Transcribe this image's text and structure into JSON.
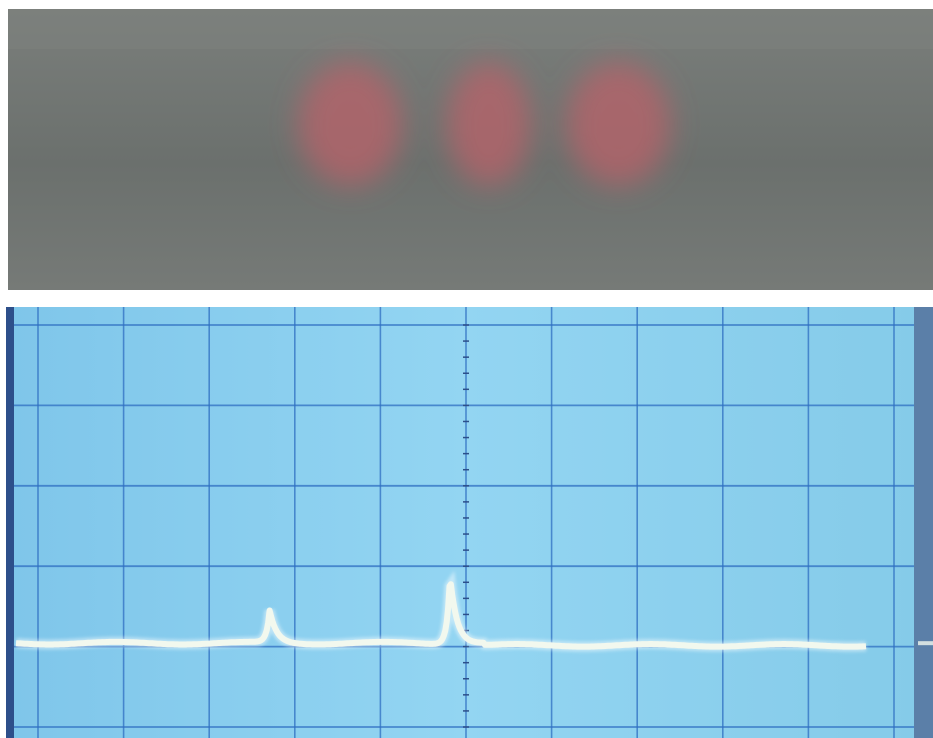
{
  "colors": {
    "photo_background": "#6f7370",
    "photo_glow": "#b9626a",
    "scope_screen": "#8ed2f0",
    "scope_grid": "#2f6fc2",
    "scope_frame": "#2d4f8a",
    "scope_trace": "#f2f8ee"
  },
  "oscilloscope": {
    "grid_divisions": {
      "horizontal": 10,
      "vertical": 5
    },
    "baseline_level": 0.78,
    "peaks": [
      {
        "position": 0.285,
        "height": 0.075
      },
      {
        "position": 0.48,
        "height": 0.16
      }
    ]
  },
  "fringe_spots": [
    {
      "position": 0.37
    },
    {
      "position": 0.52
    },
    {
      "position": 0.66
    }
  ]
}
